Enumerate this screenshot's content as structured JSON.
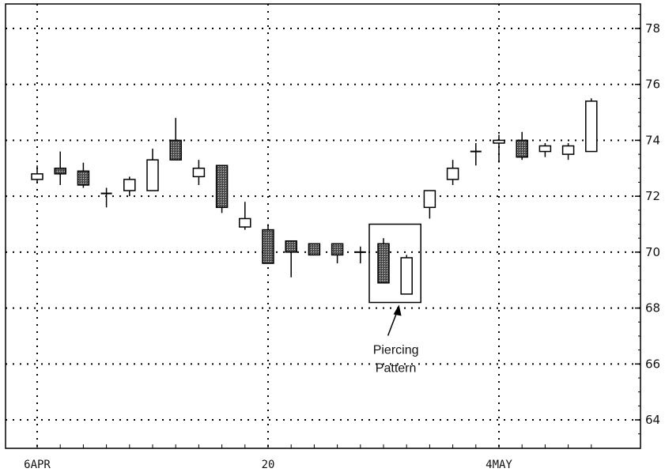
{
  "chart_data": {
    "type": "candlestick",
    "title": "",
    "xlabel": "",
    "ylabel": "",
    "ylim": [
      63,
      79
    ],
    "yticks": [
      64,
      66,
      68,
      70,
      72,
      74,
      76,
      78
    ],
    "y_axis_side": "right",
    "grid": "dotted",
    "x_ticks": [
      {
        "label": "6APR",
        "index": 0
      },
      {
        "label": "20",
        "index": 10
      },
      {
        "label": "4MAY",
        "index": 20
      }
    ],
    "candles": [
      {
        "open": 72.6,
        "high": 73.1,
        "low": 72.5,
        "close": 72.8,
        "color": "white"
      },
      {
        "open": 73.0,
        "high": 73.6,
        "low": 72.4,
        "close": 72.8,
        "color": "black"
      },
      {
        "open": 72.9,
        "high": 73.2,
        "low": 72.3,
        "close": 72.4,
        "color": "black"
      },
      {
        "open": 72.1,
        "high": 72.3,
        "low": 71.6,
        "close": 72.1,
        "color": "doji"
      },
      {
        "open": 72.2,
        "high": 72.7,
        "low": 72.0,
        "close": 72.6,
        "color": "white"
      },
      {
        "open": 72.2,
        "high": 73.7,
        "low": 72.2,
        "close": 73.3,
        "color": "white"
      },
      {
        "open": 74.0,
        "high": 74.8,
        "low": 73.3,
        "close": 73.3,
        "color": "black"
      },
      {
        "open": 72.7,
        "high": 73.3,
        "low": 72.4,
        "close": 73.0,
        "color": "white"
      },
      {
        "open": 73.1,
        "high": 73.1,
        "low": 71.4,
        "close": 71.6,
        "color": "black"
      },
      {
        "open": 70.9,
        "high": 71.8,
        "low": 70.8,
        "close": 71.2,
        "color": "white"
      },
      {
        "open": 70.8,
        "high": 71.0,
        "low": 69.6,
        "close": 69.6,
        "color": "black"
      },
      {
        "open": 70.4,
        "high": 70.4,
        "low": 69.1,
        "close": 70.0,
        "color": "black"
      },
      {
        "open": 70.3,
        "high": 70.3,
        "low": 69.9,
        "close": 69.9,
        "color": "black"
      },
      {
        "open": 70.3,
        "high": 70.3,
        "low": 69.6,
        "close": 69.9,
        "color": "black"
      },
      {
        "open": 70.0,
        "high": 70.2,
        "low": 69.6,
        "close": 70.0,
        "color": "doji"
      },
      {
        "open": 70.3,
        "high": 70.5,
        "low": 68.9,
        "close": 68.9,
        "color": "black"
      },
      {
        "open": 68.5,
        "high": 69.9,
        "low": 68.5,
        "close": 69.8,
        "color": "white"
      },
      {
        "open": 71.6,
        "high": 72.2,
        "low": 71.2,
        "close": 72.2,
        "color": "white"
      },
      {
        "open": 72.6,
        "high": 73.3,
        "low": 72.4,
        "close": 73.0,
        "color": "white"
      },
      {
        "open": 73.6,
        "high": 73.9,
        "low": 73.1,
        "close": 73.6,
        "color": "doji"
      },
      {
        "open": 73.9,
        "high": 74.2,
        "low": 73.2,
        "close": 74.0,
        "color": "white"
      },
      {
        "open": 74.0,
        "high": 74.3,
        "low": 73.3,
        "close": 73.4,
        "color": "black"
      },
      {
        "open": 73.6,
        "high": 73.9,
        "low": 73.4,
        "close": 73.8,
        "color": "white"
      },
      {
        "open": 73.5,
        "high": 73.9,
        "low": 73.3,
        "close": 73.8,
        "color": "white"
      },
      {
        "open": 73.6,
        "high": 75.5,
        "low": 73.6,
        "close": 75.4,
        "color": "white"
      }
    ],
    "annotations": [
      {
        "text_lines": [
          "Piercing",
          "Pattern"
        ],
        "targets": [
          15,
          16
        ]
      }
    ]
  }
}
